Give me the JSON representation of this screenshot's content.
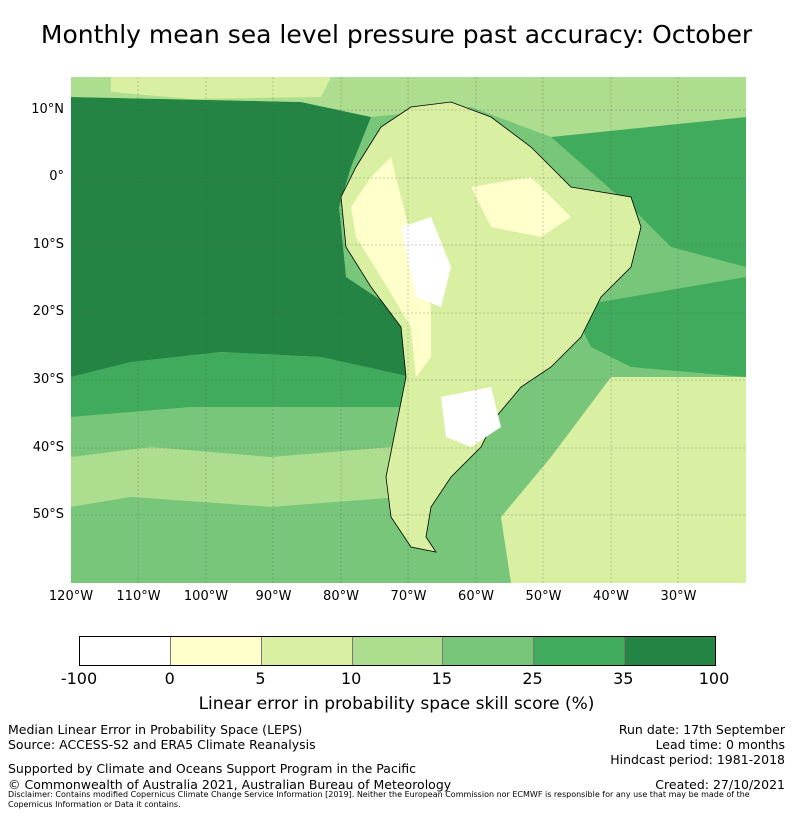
{
  "title": "Monthly mean sea level pressure past accuracy: October",
  "map": {
    "lat_labels": [
      "10°N",
      "0°",
      "10°S",
      "20°S",
      "30°S",
      "40°S",
      "50°S"
    ],
    "lon_labels": [
      "120°W",
      "110°W",
      "100°W",
      "90°W",
      "80°W",
      "70°W",
      "60°W",
      "50°W",
      "40°W",
      "30°W"
    ],
    "region": "South America",
    "extent": {
      "lon_min": -120,
      "lon_max": -20,
      "lat_min": -60,
      "lat_max": 15
    }
  },
  "colorbar": {
    "ticks": [
      "-100",
      "0",
      "5",
      "10",
      "15",
      "25",
      "35",
      "100"
    ],
    "colors": [
      "#ffffff",
      "#ffffcc",
      "#d9f0a3",
      "#addd8e",
      "#78c679",
      "#41ab5d",
      "#238443"
    ],
    "label": "Linear error in probability space skill score (%)"
  },
  "footer": {
    "left_lines": [
      "Median Linear Error in Probability Space (LEPS)",
      "Source: ACCESS-S2 and ERA5 Climate Reanalysis"
    ],
    "right_lines": [
      "Run date: 17th September",
      "Lead time: 0 months",
      "Hindcast period: 1981-2018"
    ],
    "support": "Supported by Climate and Oceans Support Program in the Pacific",
    "copyright": "© Commonwealth of Australia 2021, Australian Bureau of Meteorology",
    "created": "Created: 27/10/2021",
    "disclaimer": "Disclaimer: Contains modified Copernicus Climate Change Service Information [2019]. Neither the European Commission nor ECMWF is responsible for any use that may be made of the Copernicus Information or Data it contains."
  }
}
